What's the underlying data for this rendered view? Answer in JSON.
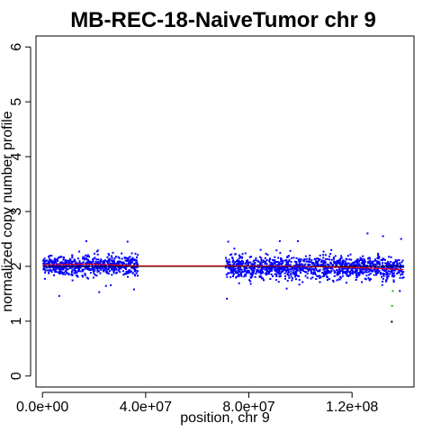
{
  "chart_data": {
    "type": "scatter",
    "title": "MB-REC-18-NaiveTumor chr 9",
    "xlabel": "position, chr 9",
    "ylabel": "normalized copy number profile",
    "xlim": [
      -2500000,
      144000000
    ],
    "ylim": [
      -0.2,
      6.2
    ],
    "x_ticks": [
      0,
      40000000,
      80000000,
      120000000
    ],
    "x_tick_labels": [
      "0.0e+00",
      "4.0e+07",
      "8.0e+07",
      "1.2e+08"
    ],
    "y_ticks": [
      0,
      1,
      2,
      3,
      4,
      5,
      6
    ],
    "y_tick_labels": [
      "0",
      "1",
      "2",
      "3",
      "4",
      "5",
      "6"
    ],
    "grid": false,
    "series": [
      {
        "marker": "point",
        "color": "#0000ff",
        "segments": [
          {
            "x_range": [
              200000,
              37000000
            ],
            "center": 2.02,
            "spread": 0.09,
            "count": 700
          },
          {
            "x_range": [
              71000000,
              140000000
            ],
            "center": 1.98,
            "spread": 0.1,
            "count": 1300
          }
        ],
        "outliers": [
          {
            "x": 6500000,
            "y": 1.46
          },
          {
            "x": 17000000,
            "y": 2.46
          },
          {
            "x": 22000000,
            "y": 1.53
          },
          {
            "x": 33000000,
            "y": 2.45
          },
          {
            "x": 35500000,
            "y": 1.58
          },
          {
            "x": 71500000,
            "y": 1.41
          },
          {
            "x": 72000000,
            "y": 2.45
          },
          {
            "x": 92000000,
            "y": 2.46
          },
          {
            "x": 99000000,
            "y": 2.46
          },
          {
            "x": 126000000,
            "y": 2.6
          },
          {
            "x": 132000000,
            "y": 2.55
          },
          {
            "x": 139000000,
            "y": 2.5
          },
          {
            "x": 138500000,
            "y": 1.55
          }
        ]
      },
      {
        "name": "segment",
        "type": "line",
        "color": "#000000",
        "x": [
          200000,
          140000000
        ],
        "y": [
          2.0,
          2.0
        ]
      },
      {
        "name": "smoothed",
        "type": "line",
        "color": "#ff0000",
        "x": [
          200000,
          20000000,
          37000000,
          71000000,
          100000000,
          120000000,
          140000000
        ],
        "y": [
          2.03,
          2.04,
          2.01,
          2.01,
          2.0,
          1.98,
          1.94
        ]
      },
      {
        "marker": "point",
        "color": "#00cc00",
        "x": [
          135500000,
          135800000
        ],
        "y": [
          1.28,
          1.55
        ]
      },
      {
        "marker": "point",
        "color": "#000000",
        "x": [
          135400000
        ],
        "y": [
          0.99
        ]
      }
    ]
  }
}
